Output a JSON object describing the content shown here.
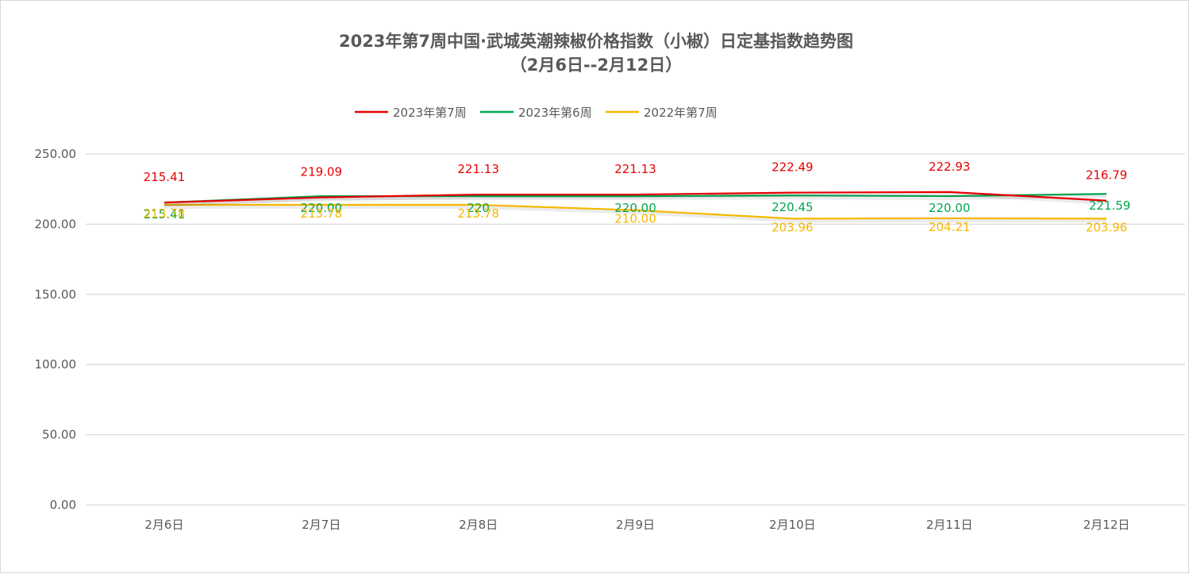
{
  "chart_data": {
    "type": "line",
    "title": "2023年第7周中国·武城英潮辣椒价格指数（小椒）日定基指数趋势图",
    "subtitle": "（2月6日--2月12日）",
    "categories": [
      "2月6日",
      "2月7日",
      "2月8日",
      "2月9日",
      "2月10日",
      "2月11日",
      "2月12日"
    ],
    "ylim": [
      0,
      250
    ],
    "yticks": [
      "0.00",
      "50.00",
      "100.00",
      "150.00",
      "200.00",
      "250.00"
    ],
    "grid": true,
    "legend_position": "top",
    "series": [
      {
        "name": "2023年第7周",
        "color": "#e60000",
        "values": [
          215.41,
          219.09,
          221.13,
          221.13,
          222.49,
          222.93,
          216.79
        ],
        "labels": [
          "215.41",
          "219.09",
          "221.13",
          "221.13",
          "222.49",
          "222.93",
          "216.79"
        ]
      },
      {
        "name": "2023年第6周",
        "color": "#00a651",
        "values": [
          215.41,
          220.0,
          220.0,
          220.0,
          220.45,
          220.0,
          221.59
        ],
        "labels": [
          "215.41",
          "220.00",
          "220",
          "220.00",
          "220.45",
          "220.00",
          "221.59"
        ]
      },
      {
        "name": "2022年第7周",
        "color": "#f5b800",
        "values": [
          213.78,
          213.78,
          213.78,
          210.0,
          203.96,
          204.21,
          203.96
        ],
        "labels": [
          "213.78",
          "213.78",
          "213.78",
          "210.00",
          "203.96",
          "204.21",
          "203.96"
        ]
      }
    ]
  }
}
